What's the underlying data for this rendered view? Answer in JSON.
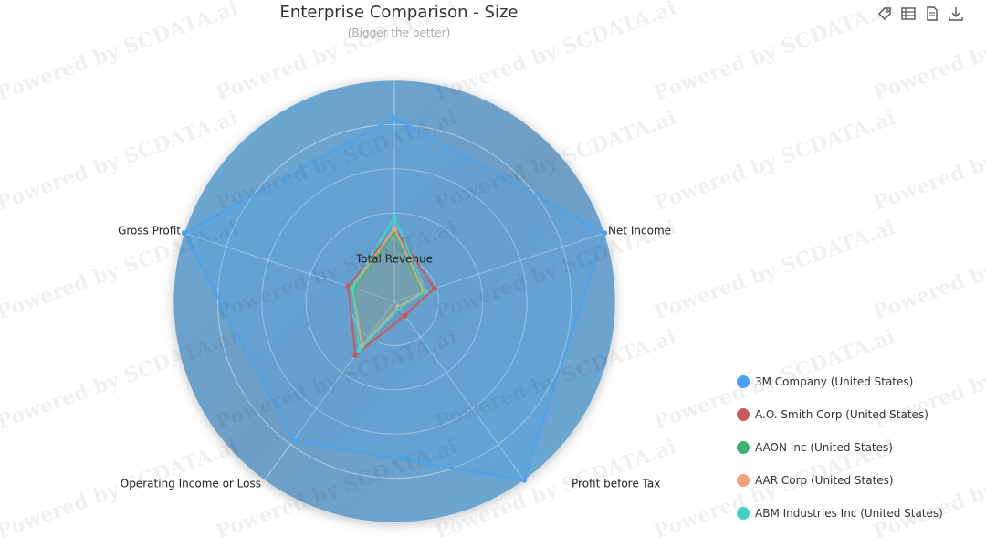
{
  "chart_data": {
    "type": "radar",
    "title": "Enterprise Comparison - Size",
    "subtitle": "(Bigger the better)",
    "indicators": [
      "Total Revenue",
      "Net Income",
      "Profit before Tax",
      "Operating Income or Loss",
      "Gross Profit"
    ],
    "max": 100,
    "split_number": 5,
    "series": [
      {
        "name": "3M Company (United States)",
        "color": "#4aa3f0",
        "values": [
          83,
          100,
          100,
          78,
          100
        ]
      },
      {
        "name": "A.O. Smith Corp (United States)",
        "color": "#c85a5a",
        "values": [
          33,
          19,
          8,
          30,
          22
        ]
      },
      {
        "name": "AAON Inc (United States)",
        "color": "#3cb371",
        "values": [
          31,
          13,
          4,
          27,
          19
        ]
      },
      {
        "name": "AAR Corp (United States)",
        "color": "#f4a07a",
        "values": [
          33,
          14,
          3,
          25,
          20
        ]
      },
      {
        "name": "ABM Industries Inc (United States)",
        "color": "#40d0c8",
        "values": [
          38,
          15,
          4,
          27,
          20
        ]
      }
    ],
    "legend_position": "right-bottom"
  },
  "toolbar": {
    "icons": [
      "tag-icon",
      "data-view-icon",
      "document-icon",
      "download-icon"
    ]
  },
  "watermark": {
    "text": "Powered by SCDATA.ai"
  }
}
